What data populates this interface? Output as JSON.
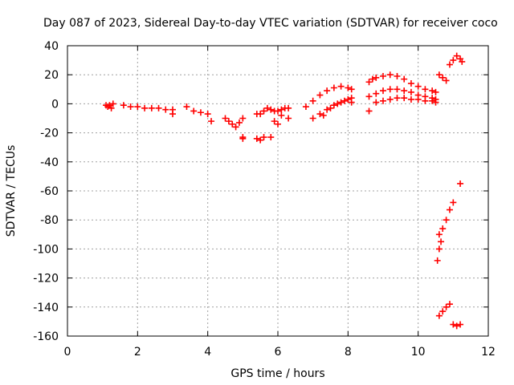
{
  "chart_data": {
    "type": "scatter",
    "title": "Day 087 of 2023, Sidereal Day-to-day VTEC variation (SDTVAR) for receiver coco",
    "xlabel": "GPS time / hours",
    "ylabel": "SDTVAR / TECUs",
    "xlim": [
      0,
      12
    ],
    "ylim": [
      -160,
      40
    ],
    "xticks": [
      0,
      2,
      4,
      6,
      8,
      10,
      12
    ],
    "yticks": [
      -160,
      -140,
      -120,
      -100,
      -80,
      -60,
      -40,
      -20,
      0,
      20,
      40
    ],
    "grid": true,
    "marker": "+",
    "series": [
      {
        "name": "SDTVAR",
        "color": "#ff0000",
        "x": [
          1.1,
          1.15,
          1.2,
          1.25,
          1.3,
          1.6,
          1.8,
          2.0,
          2.2,
          2.4,
          2.6,
          2.8,
          3.0,
          3.0,
          3.4,
          3.6,
          3.8,
          4.0,
          4.1,
          4.5,
          4.6,
          4.7,
          4.8,
          4.9,
          5.0,
          5.0,
          5.0,
          5.4,
          5.5,
          5.6,
          5.8,
          5.4,
          5.5,
          5.6,
          5.7,
          5.8,
          5.9,
          6.0,
          6.1,
          6.2,
          6.3,
          5.9,
          6.0,
          6.1,
          6.3,
          6.8,
          7.0,
          7.2,
          7.4,
          7.6,
          7.8,
          8.0,
          8.1,
          7.0,
          7.2,
          7.4,
          7.6,
          7.8,
          8.0,
          8.1,
          7.3,
          7.5,
          7.7,
          7.9,
          8.1,
          8.6,
          8.7,
          8.8,
          9.0,
          9.2,
          9.4,
          9.6,
          9.8,
          10.0,
          10.2,
          10.4,
          10.5,
          8.6,
          8.8,
          9.0,
          9.2,
          9.4,
          9.6,
          9.8,
          10.0,
          10.2,
          10.4,
          10.5,
          8.8,
          9.0,
          9.2,
          9.4,
          9.6,
          9.8,
          10.0,
          10.2,
          10.4,
          10.5,
          8.6,
          10.6,
          10.7,
          10.8,
          10.9,
          11.0,
          11.1,
          11.2,
          11.25,
          11.2,
          11.0,
          10.9,
          10.8,
          10.7,
          10.6,
          10.55,
          10.6,
          10.65,
          10.6,
          10.7,
          10.8,
          10.9,
          11.0,
          11.1,
          11.2
        ],
        "y": [
          -1,
          -2,
          -1,
          -3,
          0,
          -1,
          -2,
          -2,
          -3,
          -3,
          -3,
          -4,
          -4,
          -7,
          -2,
          -5,
          -6,
          -7,
          -12,
          -10,
          -12,
          -14,
          -16,
          -13,
          -23,
          -24,
          -10,
          -24,
          -25,
          -23,
          -23,
          -7,
          -7,
          -5,
          -3,
          -4,
          -5,
          -5,
          -4,
          -3,
          -3,
          -12,
          -14,
          -8,
          -10,
          -2,
          2,
          6,
          9,
          11,
          12,
          11,
          10,
          -10,
          -7,
          -4,
          -1,
          1,
          3,
          4,
          -8,
          -3,
          0,
          2,
          1,
          15,
          17,
          18,
          19,
          20,
          19,
          17,
          14,
          12,
          10,
          9,
          8,
          5,
          7,
          9,
          10,
          10,
          9,
          8,
          6,
          5,
          4,
          3,
          1,
          2,
          3,
          4,
          4,
          3,
          3,
          2,
          2,
          1,
          -5,
          20,
          18,
          16,
          27,
          30,
          33,
          31,
          29,
          -55,
          -68,
          -73,
          -80,
          -86,
          -90,
          -108,
          -100,
          -95,
          -146,
          -143,
          -140,
          -138,
          -152,
          -153,
          -152
        ]
      }
    ]
  }
}
